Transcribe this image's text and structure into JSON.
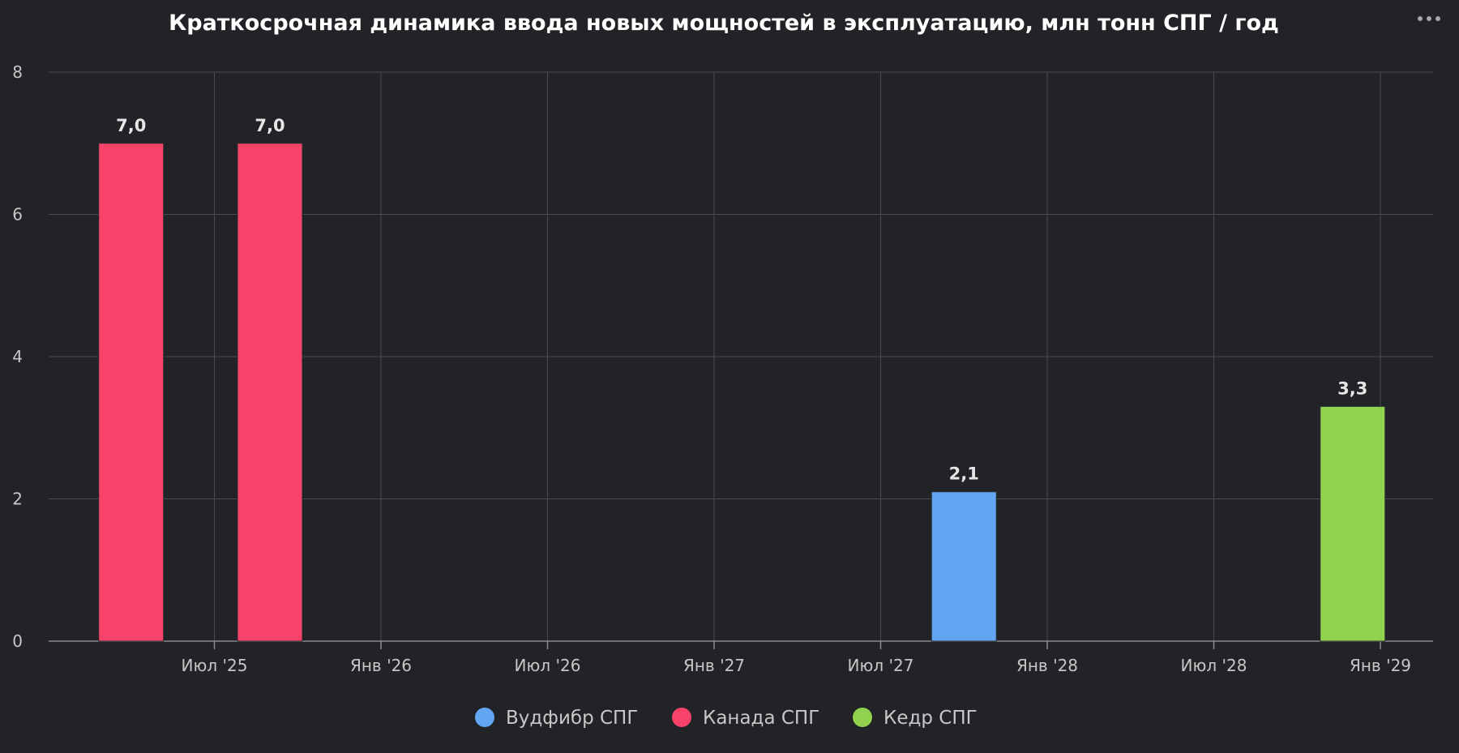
{
  "chart_data": {
    "type": "bar",
    "title": "Краткосрочная динамика ввода новых мощностей в эксплуатацию, млн тонн СПГ / год",
    "xlabel": "",
    "ylabel": "",
    "ylim": [
      0,
      8
    ],
    "y_ticks": [
      0,
      2,
      4,
      6,
      8
    ],
    "x_axis": {
      "type": "datetime",
      "range": [
        "2025-02",
        "2029-01"
      ],
      "ticks": [
        {
          "date": "2025-07",
          "label": "Июл '25"
        },
        {
          "date": "2026-01",
          "label": "Янв '26"
        },
        {
          "date": "2026-07",
          "label": "Июл '26"
        },
        {
          "date": "2027-01",
          "label": "Янв '27"
        },
        {
          "date": "2027-07",
          "label": "Июл '27"
        },
        {
          "date": "2028-01",
          "label": "Янв '28"
        },
        {
          "date": "2028-07",
          "label": "Июл '28"
        },
        {
          "date": "2029-01",
          "label": "Янв '29"
        }
      ]
    },
    "grid": true,
    "legend": "bottom-center",
    "series": [
      {
        "name": "Вудфибр СПГ",
        "color": "#62a6f2",
        "points": [
          {
            "date": "2027-10",
            "value": 2.1,
            "label": "2,1"
          }
        ]
      },
      {
        "name": "Канада СПГ",
        "color": "#f7436a",
        "points": [
          {
            "date": "2025-04",
            "value": 7.0,
            "label": "7,0"
          },
          {
            "date": "2025-09",
            "value": 7.0,
            "label": "7,0"
          }
        ]
      },
      {
        "name": "Кедр СПГ",
        "color": "#91d34f",
        "points": [
          {
            "date": "2028-12",
            "value": 3.3,
            "label": "3,3"
          }
        ]
      }
    ]
  }
}
